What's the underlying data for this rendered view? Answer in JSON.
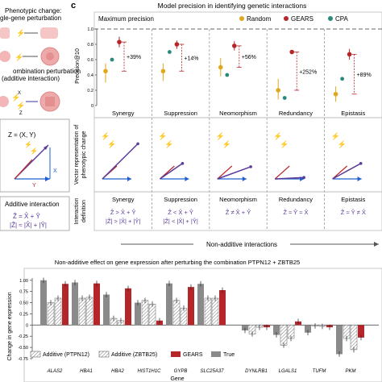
{
  "left_panel": {
    "label_single": "Phenotypic change:",
    "label_single2": "gle-gene perturbation",
    "label_combo": "ombination perturbation",
    "label_combo2": "(additive interaction)",
    "z_eq": "Z = (X, Y)",
    "var_x": "X",
    "var_y": "Y",
    "var_z": "Z",
    "additive_title": "Additive interaction",
    "additive_eq1": "Ẑ = X̂ + Ŷ",
    "additive_eq2": "|Ẑ| ≈ |X̂| + |Ŷ|"
  },
  "panel_c": {
    "letter": "c",
    "title": "Model precision in identifying genetic interactions",
    "max_label": "Maximum precision",
    "ylabel": "Precision@10",
    "yticks": [
      "1.0",
      "0.8",
      "0.6",
      "0.4",
      "0.2",
      "0"
    ],
    "legend": [
      {
        "name": "Random",
        "color": "#e0a81c"
      },
      {
        "name": "GEARS",
        "color": "#b5262b"
      },
      {
        "name": "CPA",
        "color": "#2a8a7a"
      }
    ],
    "categories": [
      "Synergy",
      "Suppression",
      "Neomorphism",
      "Redundancy",
      "Epistasis"
    ],
    "improvements": [
      "+39%",
      "+14%",
      "+56%",
      "+252%",
      "+89%"
    ],
    "random": [
      0.45,
      0.45,
      0.5,
      0.2,
      0.15
    ],
    "random_err": [
      [
        0.3,
        0.55
      ],
      [
        0.32,
        0.55
      ],
      [
        0.38,
        0.62
      ],
      [
        0.08,
        0.35
      ],
      [
        0.05,
        0.25
      ]
    ],
    "cpa": [
      0.6,
      0.7,
      0.4,
      0.1,
      0.35
    ],
    "gears": [
      0.83,
      0.8,
      0.78,
      0.7,
      0.67
    ],
    "gears_err": [
      [
        0.76,
        0.9
      ],
      [
        0.74,
        0.85
      ],
      [
        0.72,
        0.84
      ],
      [
        0.68,
        0.72
      ],
      [
        0.6,
        0.74
      ]
    ],
    "vector_ylabel1": "Vector representation of",
    "vector_ylabel2": "phenotypic change",
    "definition_ylabel1": "Interaction",
    "definition_ylabel2": "definition",
    "definitions": [
      "Ẑ > X̂ + Ŷ",
      "Ẑ < X̂ + Ŷ",
      "Ẑ ≠ X̂ + Ŷ",
      "Ẑ ≈ Ŷ ≈ X̂",
      "Ẑ ≈ Ŷ ≠ X̂"
    ],
    "definitions2": [
      "|Ẑ| > |X̂| + |Ŷ|",
      "|Ẑ| < |X̂| + |Ŷ|",
      "",
      "",
      ""
    ],
    "bracket_label": "Non-additive interactions"
  },
  "chart_data": {
    "type": "bar",
    "title": "Non-additive effect on gene expression after perturbing the combination PTPN12 + ZBTB25",
    "xlabel": "Gene",
    "ylabel": "Change in gene expression",
    "ylim": [
      -0.75,
      1.05
    ],
    "yticks": [
      "1.00",
      "0.75",
      "0.50",
      "0.25",
      "0",
      "-0.25",
      "-0.50",
      "-0.75"
    ],
    "categories": [
      "ALAS2",
      "HBA1",
      "HBA2",
      "HIST1H1C",
      "GYPB",
      "SLC25A37",
      "DYNLRB1",
      "LGALS1",
      "TUFM",
      "PKM"
    ],
    "series": [
      {
        "name": "True",
        "color": "#8a8a8a",
        "values": [
          1.0,
          0.95,
          0.68,
          0.5,
          0.93,
          0.92,
          -0.12,
          -0.22,
          -0.17,
          -0.65
        ]
      },
      {
        "name": "Additive (PTPN12)",
        "color": "#e8e8e8",
        "values": [
          0.5,
          0.6,
          0.15,
          0.55,
          0.55,
          0.6,
          -0.2,
          -0.45,
          -0.02,
          -0.3
        ]
      },
      {
        "name": "Additive (ZBTB25)",
        "color": "#e8e8e8",
        "values": [
          0.6,
          0.62,
          0.1,
          0.47,
          0.38,
          0.6,
          -0.05,
          -0.3,
          -0.03,
          -0.55
        ]
      },
      {
        "name": "GEARS",
        "color": "#b5262b",
        "values": [
          0.92,
          0.93,
          0.82,
          0.1,
          0.85,
          0.78,
          -0.05,
          0.08,
          -0.05,
          -0.28
        ]
      }
    ],
    "legend_order": [
      "Additive (PTPN12)",
      "Additive (ZBTB25)",
      "GEARS",
      "True"
    ]
  }
}
